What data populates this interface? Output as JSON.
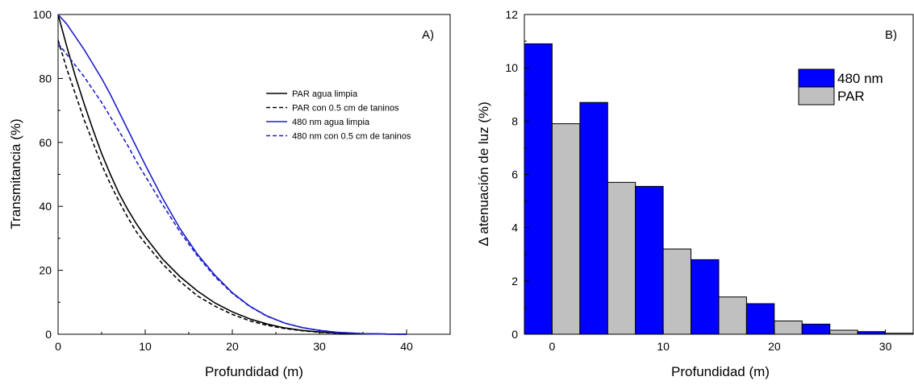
{
  "chart_data": [
    {
      "panel": "A)",
      "type": "line",
      "xlabel": "Profundidad (m)",
      "ylabel": "Transmitancia (%)",
      "xlim": [
        0,
        45
      ],
      "ylim": [
        0,
        100
      ],
      "xticks": [
        0,
        10,
        20,
        30,
        40
      ],
      "yticks": [
        0,
        20,
        40,
        60,
        80,
        100
      ],
      "legend_position": "top-right",
      "x": [
        0,
        1,
        2,
        3,
        4,
        5,
        6,
        7,
        8,
        9,
        10,
        12,
        14,
        16,
        18,
        20,
        22,
        24,
        26,
        28,
        30,
        32,
        35,
        38,
        40
      ],
      "series": [
        {
          "name": "PAR agua limpia",
          "color": "#000000",
          "dash": "solid",
          "values": [
            100,
            90,
            80.5,
            72,
            64,
            56.5,
            50,
            44,
            39,
            34.5,
            30.5,
            23.5,
            18,
            13.5,
            9.8,
            7,
            4.8,
            3.2,
            2,
            1.2,
            0.7,
            0.4,
            0.15,
            0.05,
            0
          ]
        },
        {
          "name": "PAR con 0.5 cm de taninos",
          "color": "#000000",
          "dash": "dashed",
          "values": [
            92,
            83,
            75,
            67,
            60,
            53,
            47,
            41.5,
            36.5,
            32,
            28.5,
            22,
            16.5,
            12,
            8.8,
            6.2,
            4.2,
            2.8,
            1.8,
            1.1,
            0.6,
            0.35,
            0.12,
            0.04,
            0
          ]
        },
        {
          "name": "480 nm agua limpia",
          "color": "#1f1fc8",
          "dash": "solid",
          "values": [
            100,
            97,
            93,
            89,
            84.5,
            80,
            75,
            69.5,
            64,
            58.5,
            53,
            42.5,
            33,
            25,
            18.5,
            13,
            8.8,
            5.7,
            3.5,
            2.1,
            1.2,
            0.6,
            0.2,
            0.06,
            0
          ]
        },
        {
          "name": "480 nm con 0.5 cm de taninos",
          "color": "#1f1fc8",
          "dash": "dashed",
          "values": [
            91,
            87.5,
            84,
            80.5,
            76.5,
            72.5,
            68,
            63.5,
            59,
            54,
            49.5,
            40.5,
            32,
            24.5,
            18,
            12.8,
            8.7,
            5.6,
            3.5,
            2.1,
            1.2,
            0.6,
            0.2,
            0.06,
            0
          ]
        }
      ]
    },
    {
      "panel": "B)",
      "type": "bar",
      "xlabel": "Profundidad (m)",
      "ylabel": "Δ atenuación de luz (%)",
      "xlim": [
        -2.5,
        32.5
      ],
      "ylim": [
        0,
        12
      ],
      "xticks": [
        0,
        10,
        20,
        30
      ],
      "yticks": [
        0,
        2,
        4,
        6,
        8,
        10,
        12
      ],
      "legend_position": "top-right",
      "categories": [
        0,
        5,
        10,
        15,
        20,
        25,
        30
      ],
      "series": [
        {
          "name": "480 nm",
          "color": "#0000ff",
          "values": [
            10.9,
            8.7,
            5.55,
            2.8,
            1.15,
            0.38,
            0.1
          ]
        },
        {
          "name": "PAR",
          "color": "#c0c0c0",
          "values": [
            7.9,
            5.7,
            3.2,
            1.4,
            0.5,
            0.15,
            0.04
          ]
        }
      ]
    }
  ]
}
